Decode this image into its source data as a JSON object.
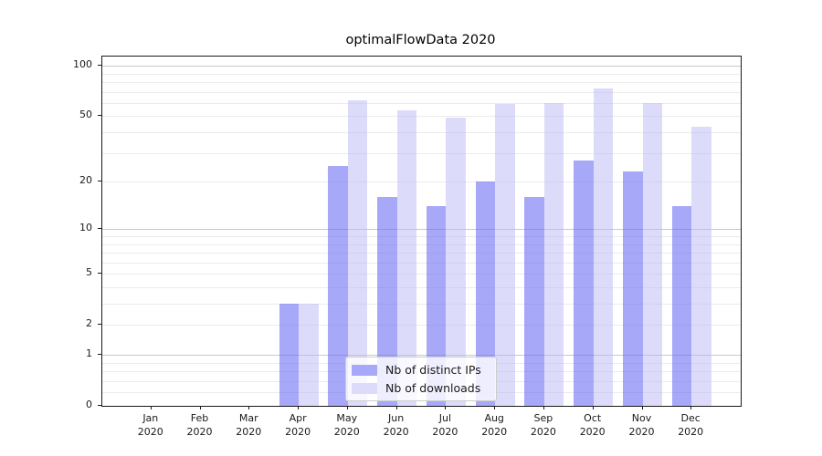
{
  "figure": {
    "title": "optimalFlowData 2020",
    "background": "#ffffff"
  },
  "chart_data": {
    "type": "bar",
    "title": "optimalFlowData 2020",
    "categories": [
      "Jan 2020",
      "Feb 2020",
      "Mar 2020",
      "Apr 2020",
      "May 2020",
      "Jun 2020",
      "Jul 2020",
      "Aug 2020",
      "Sep 2020",
      "Oct 2020",
      "Nov 2020",
      "Dec 2020"
    ],
    "series": [
      {
        "name": "Nb of distinct IPs",
        "color_fill": "rgba(110,110,243,0.6)",
        "color_solid": "#a8a8f8",
        "values": [
          0,
          0,
          0,
          3,
          25,
          16,
          14,
          20,
          16,
          27,
          23,
          14
        ]
      },
      {
        "name": "Nb of downloads",
        "color_fill": "rgba(185,185,245,0.5)",
        "color_solid": "#dcdcfa",
        "values": [
          0,
          0,
          0,
          3,
          62,
          54,
          49,
          59,
          60,
          73,
          60,
          43
        ]
      }
    ],
    "xlabel": "",
    "ylabel": "",
    "y_scale": "log10(1+y)",
    "y_ticks": [
      0,
      1,
      2,
      5,
      10,
      20,
      50,
      100
    ],
    "ylim": [
      0,
      114
    ],
    "grid": "horizontal",
    "legend_position": "lower center inside axes"
  },
  "axes": {
    "x_tick_months": [
      "Jan",
      "Feb",
      "Mar",
      "Apr",
      "May",
      "Jun",
      "Jul",
      "Aug",
      "Sep",
      "Oct",
      "Nov",
      "Dec"
    ],
    "x_tick_year": "2020",
    "y_tick_labels": [
      "0",
      "1",
      "2",
      "5",
      "10",
      "20",
      "50",
      "100"
    ]
  },
  "style": {
    "grid_minor_color": "#ebebeb",
    "grid_major_color": "#c9c9c9",
    "spine_color": "#1a1a1a",
    "legend_border_color": "#cccccc"
  }
}
